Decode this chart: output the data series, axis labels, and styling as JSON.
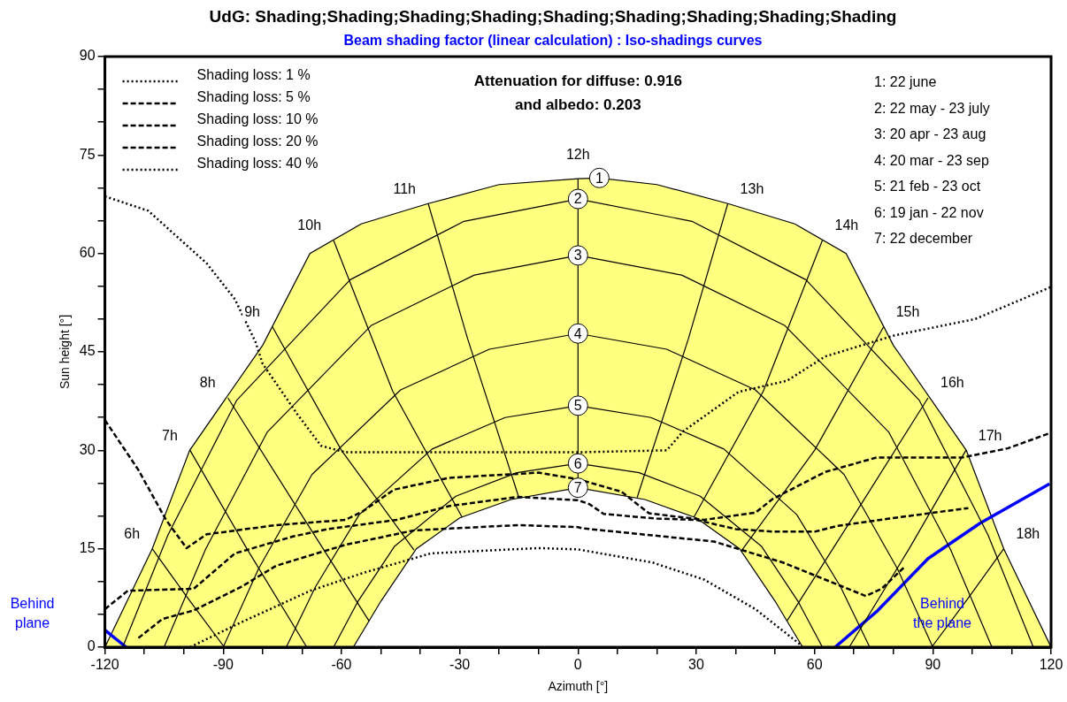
{
  "chart_data": {
    "type": "line",
    "title": "UdG: Shading;Shading;Shading;Shading;Shading;Shading;Shading;Shading;Shading",
    "subtitle": "Beam shading factor (linear calculation) : Iso-shadings curves",
    "xlabel": "Azimuth [°]",
    "ylabel": "Sun height [°]",
    "xlim": [
      -120,
      120
    ],
    "ylim": [
      0,
      90
    ],
    "xticks": [
      -120,
      {
        "value": -110,
        "label": null
      },
      {
        "value": -100,
        "label": null
      },
      -90,
      {
        "value": -80,
        "label": null
      },
      {
        "value": -70,
        "label": null
      },
      -60,
      {
        "value": -50,
        "label": null
      },
      {
        "value": -40,
        "label": null
      },
      -30,
      {
        "value": -20,
        "label": null
      },
      {
        "value": -10,
        "label": null
      },
      0,
      {
        "value": 10,
        "label": null
      },
      {
        "value": 20,
        "label": null
      },
      30,
      {
        "value": 40,
        "label": null
      },
      {
        "value": 50,
        "label": null
      },
      60,
      {
        "value": 70,
        "label": null
      },
      {
        "value": 80,
        "label": null
      },
      90,
      {
        "value": 100,
        "label": null
      },
      {
        "value": 110,
        "label": null
      },
      120
    ],
    "yticks": [
      0,
      {
        "value": 5,
        "label": null
      },
      {
        "value": 10,
        "label": null
      },
      15,
      {
        "value": 20,
        "label": null
      },
      {
        "value": 25,
        "label": null
      },
      30,
      {
        "value": 35,
        "label": null
      },
      {
        "value": 40,
        "label": null
      },
      45,
      {
        "value": 50,
        "label": null
      },
      {
        "value": 55,
        "label": null
      },
      60,
      {
        "value": 65,
        "label": null
      },
      {
        "value": 70,
        "label": null
      },
      75,
      {
        "value": 80,
        "label": null
      },
      {
        "value": 85,
        "label": null
      },
      90
    ],
    "legend": "top left",
    "marker": "none",
    "annotations": [
      "Attenuation for diffuse: 0.916\nand albedo: 0.203",
      "1: 22 june\n2: 22 may - 23 july\n3: 20 apr - 23 aug\n4: 20 mar - 23 sep\n5: 21 feb - 23 oct\n6: 19 jan - 22 nov\n7: 22 december",
      "Behind\nplane",
      "Behind\nthe plane"
    ],
    "series": [
      {
        "type": "area",
        "name": "1",
        "color": "#ffff80",
        "x": [
          -120,
          -108,
          -98.5,
          -80,
          -68,
          -55,
          -38,
          -20,
          0,
          5.4,
          20,
          38,
          55,
          68,
          80,
          98.5,
          108,
          120
        ],
        "values": [
          0,
          15,
          30,
          46,
          60,
          64.5,
          67.6,
          70.5,
          71.4,
          71.5,
          70.5,
          67.6,
          64.5,
          60,
          46,
          30,
          15,
          0
        ]
      },
      {
        "type": "line",
        "name": "2",
        "color": "#000000",
        "x": [
          -115.5,
          -104,
          -86.6,
          -57.8,
          -28.9,
          0,
          28.9,
          57.8,
          86.6,
          104,
          115.5
        ],
        "values": [
          0,
          17.1,
          37.6,
          56,
          64.9,
          68.3,
          64.9,
          56,
          37.6,
          17.1,
          0
        ]
      },
      {
        "type": "line",
        "name": "3",
        "color": "#000000",
        "x": [
          -105,
          -94.5,
          -78.8,
          -52.5,
          -26.3,
          0,
          26.3,
          52.5,
          78.8,
          94.5,
          105
        ],
        "values": [
          0,
          14.9,
          32.8,
          49,
          56.7,
          59.7,
          56.7,
          49,
          32.8,
          14.9,
          0
        ]
      },
      {
        "type": "line",
        "name": "4",
        "color": "#000000",
        "x": [
          -90,
          -81,
          -67.5,
          -45,
          -22.5,
          0,
          22.5,
          45,
          67.5,
          81,
          90
        ],
        "values": [
          0,
          12,
          26.3,
          39.2,
          45.4,
          47.8,
          45.4,
          39.2,
          26.3,
          12,
          0
        ]
      },
      {
        "type": "line",
        "name": "5",
        "color": "#000000",
        "x": [
          -74,
          -66.6,
          -55.5,
          -37,
          -18.5,
          0,
          18.5,
          37,
          55.5,
          66.6,
          74
        ],
        "values": [
          0,
          9.2,
          20.2,
          30.2,
          35,
          36.8,
          35,
          30.2,
          20.2,
          9.2,
          0
        ]
      },
      {
        "type": "line",
        "name": "6",
        "color": "#000000",
        "x": [
          -62,
          -55.8,
          -46.5,
          -31,
          -15.5,
          0,
          15.5,
          31,
          46.5,
          55.8,
          62
        ],
        "values": [
          0,
          7,
          15.4,
          23,
          26.6,
          28,
          26.6,
          23,
          15.4,
          7,
          0
        ]
      },
      {
        "type": "area",
        "name": "7",
        "color": "#ffffff",
        "x": [
          -57,
          -50,
          -41,
          -30,
          -17,
          0,
          17,
          30,
          41,
          50,
          57
        ],
        "values": [
          0,
          7,
          15,
          19.7,
          22.5,
          24.3,
          22.5,
          19.7,
          15,
          7,
          0
        ]
      },
      {
        "type": "line",
        "name": "12h",
        "color": "#000000",
        "x": [
          0,
          0
        ],
        "values": [
          25.8,
          71.4
        ]
      },
      {
        "type": "line",
        "name": "11h",
        "color": "#000000",
        "x": [
          -38,
          -28,
          -15
        ],
        "values": [
          67.6,
          47,
          22.8
        ]
      },
      {
        "type": "line",
        "name": "10h",
        "color": "#000000",
        "x": [
          -62,
          -47,
          -29.4
        ],
        "values": [
          62,
          39,
          19.8
        ]
      },
      {
        "type": "line",
        "name": "9h",
        "color": "#000000",
        "x": [
          -77.5,
          -60,
          -41.6
        ],
        "values": [
          48.8,
          30,
          14.8
        ]
      },
      {
        "type": "line",
        "name": "8h",
        "color": "#000000",
        "x": [
          -88.8,
          -71,
          -53
        ],
        "values": [
          38,
          21,
          4
        ]
      },
      {
        "type": "line",
        "name": "7h",
        "color": "#000000",
        "x": [
          -98.4,
          -84,
          -68.8
        ],
        "values": [
          30,
          15,
          0
        ]
      },
      {
        "type": "line",
        "name": "6h",
        "color": "#000000",
        "x": [
          -108,
          -99,
          -89.7
        ],
        "values": [
          15,
          7.5,
          0
        ]
      },
      {
        "type": "line",
        "name": "13h",
        "color": "#000000",
        "x": [
          38,
          28,
          15
        ],
        "values": [
          67.6,
          47,
          22.8
        ]
      },
      {
        "type": "line",
        "name": "14h",
        "color": "#000000",
        "x": [
          62,
          47,
          29.4
        ],
        "values": [
          62,
          39,
          19.8
        ]
      },
      {
        "type": "line",
        "name": "15h",
        "color": "#000000",
        "x": [
          77.5,
          60,
          41.6
        ],
        "values": [
          48.8,
          30,
          14.8
        ]
      },
      {
        "type": "line",
        "name": "16h",
        "color": "#000000",
        "x": [
          88.8,
          71,
          53
        ],
        "values": [
          38,
          21,
          4
        ]
      },
      {
        "type": "line",
        "name": "17h",
        "color": "#000000",
        "x": [
          98.4,
          84,
          68.8
        ],
        "values": [
          30,
          15,
          0
        ]
      },
      {
        "type": "line",
        "name": "18h",
        "color": "#000000",
        "x": [
          108,
          99,
          89.7
        ],
        "values": [
          15,
          7.5,
          0
        ]
      },
      {
        "type": "line",
        "name": "Shading loss: 1 %",
        "color": "#000000",
        "line_style": "dotted",
        "x": [
          -120,
          -109,
          -94.2,
          -87,
          -81.8,
          -80,
          -71.2,
          -65.2,
          -59,
          -30,
          0,
          22.5,
          26.7,
          40.7,
          53,
          62.7,
          80.2,
          100.7,
          120
        ],
        "values": [
          68.7,
          66.5,
          58.5,
          53,
          46.5,
          43.2,
          35.5,
          30.7,
          29.7,
          29.7,
          29.7,
          30,
          32.9,
          38.9,
          40.6,
          44.3,
          47.5,
          50,
          54.9
        ]
      },
      {
        "type": "line",
        "name": "Shading loss: 5 %",
        "color": "#000000",
        "line_style": "dashed",
        "x": [
          -120,
          -111.5,
          -104.5,
          -99.3,
          -94.2,
          -76.6,
          -59,
          -54.6,
          -46.7,
          -32.8,
          -10,
          0,
          11,
          18,
          32,
          45,
          49.4,
          62.7,
          75.7,
          97.5,
          109,
          119.6
        ],
        "values": [
          34.6,
          27,
          19.4,
          15.1,
          17.2,
          18.6,
          19.4,
          20.7,
          24,
          25.8,
          26.6,
          25.6,
          23.7,
          20.4,
          19.4,
          20.5,
          22.6,
          26.7,
          28.9,
          28.9,
          30.3,
          32.6
        ]
      },
      {
        "type": "line",
        "name": "Shading loss: 10 %",
        "color": "#000000",
        "line_style": "dashed",
        "x": [
          -120,
          -114.2,
          -97.5,
          -87,
          -72.1,
          -63.4,
          -46,
          -32.8,
          -15.3,
          0,
          2.9,
          6.5,
          20,
          30,
          40,
          50,
          60,
          66,
          79,
          99
        ],
        "values": [
          5.8,
          8.6,
          8.9,
          14.3,
          16.9,
          18,
          19.4,
          21.5,
          22.9,
          22.4,
          21.8,
          20.3,
          19.6,
          19.4,
          18,
          17.6,
          17.6,
          18.5,
          19.6,
          21.2
        ]
      },
      {
        "type": "line",
        "name": "Shading loss: 20 %",
        "color": "#000000",
        "line_style": "dashed",
        "x": [
          -111.5,
          -105.4,
          -97.5,
          -85.4,
          -76.6,
          -67.9,
          -59,
          -41.6,
          -15.3,
          0,
          1.3,
          34.5,
          52,
          73,
          77,
          82.6
        ],
        "values": [
          1.4,
          4.3,
          5.6,
          9.2,
          12.4,
          14,
          15.6,
          17.8,
          18.6,
          18.3,
          18.1,
          16.1,
          12.9,
          7.8,
          8.9,
          12.1
        ]
      },
      {
        "type": "line",
        "name": "Shading loss: 40 %",
        "color": "#000000",
        "line_style": "dotted",
        "x": [
          -98.4,
          -85.4,
          -67.9,
          -54.6,
          -37.3,
          -10,
          0,
          18.9,
          32,
          45,
          56.4
        ],
        "values": [
          0,
          3.8,
          8.6,
          11.3,
          14.3,
          15.1,
          14.9,
          12.9,
          10.3,
          5.8,
          0.4
        ]
      },
      {
        "type": "line",
        "color": "#0000ff",
        "x": [
          -120,
          -114.6
        ],
        "values": [
          2.6,
          0
        ]
      },
      {
        "type": "line",
        "color": "#0000ff",
        "x": [
          65.2,
          75.7,
          88.8,
          102,
          119.6
        ],
        "values": [
          0,
          5.4,
          13.5,
          18.9,
          24.9
        ]
      }
    ]
  }
}
